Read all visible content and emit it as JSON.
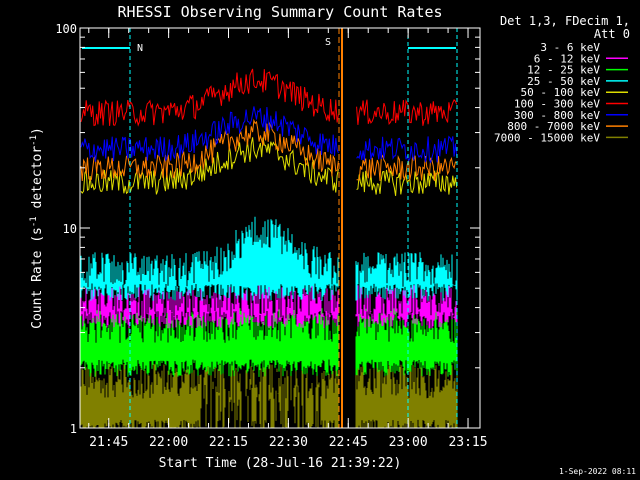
{
  "chart_data": {
    "type": "line",
    "title": "RHESSI Observing Summary Count Rates",
    "xlabel": "Start Time (28-Jul-16 21:39:22)",
    "ylabel_main": "Count Rate (s",
    "ylabel_sup1": "-1",
    "ylabel_mid": " detector",
    "ylabel_sup2": "-1",
    "ylabel_end": ")",
    "yscale": "log",
    "ylim": [
      1,
      100
    ],
    "xlim_minutes": [
      21.63,
      23.3
    ],
    "x_tick_labels": [
      "21:45",
      "22:00",
      "22:15",
      "22:30",
      "22:45",
      "23:00",
      "23:15"
    ],
    "y_tick_labels": [
      "1",
      "10",
      "100"
    ],
    "header": {
      "line1": "Det 1,3, FDecim 1,",
      "line2": "Att 0"
    },
    "legend_position": "right",
    "series": [
      {
        "name": "3 - 6 keV",
        "color": "#000000"
      },
      {
        "name": "6 - 12 keV",
        "color": "#ff00ff"
      },
      {
        "name": "12 - 25 keV",
        "color": "#00ff00"
      },
      {
        "name": "25 - 50 keV",
        "color": "#00ffff"
      },
      {
        "name": "50 - 100 keV",
        "color": "#dddd00"
      },
      {
        "name": "100 - 300 keV",
        "color": "#ff0000"
      },
      {
        "name": "300 - 800 keV",
        "color": "#0000ff"
      },
      {
        "name": "800 - 7000 keV",
        "color": "#ff8000"
      },
      {
        "name": "7000 - 15000 keV",
        "color": "#808000"
      }
    ],
    "approx_levels": {
      "100 - 300 keV": {
        "base": 38,
        "peak": 55,
        "peak_time": "22:22"
      },
      "300 - 800 keV": {
        "base": 25,
        "peak": 36,
        "peak_time": "22:22"
      },
      "800 - 7000 keV": {
        "base": 20,
        "peak": 30,
        "peak_time": "22:22"
      },
      "50 - 100 keV": {
        "base": 17,
        "peak": 25,
        "peak_time": "22:22"
      },
      "25 - 50 keV": {
        "base": 6.5,
        "peak": 10,
        "peak_time": "22:24"
      }
    },
    "markers": [
      {
        "label": "N",
        "color": "#00ffff"
      },
      {
        "label": "S",
        "color": "#ff8000"
      }
    ],
    "footer_date": "1-Sep-2022 08:11"
  }
}
